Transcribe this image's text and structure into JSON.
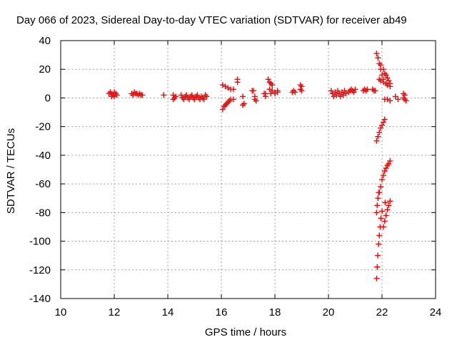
{
  "chart_data": {
    "type": "scatter",
    "title": "Day 066 of 2023, Sidereal Day-to-day VTEC variation (SDTVAR) for receiver ab49",
    "xlabel": "GPS time / hours",
    "ylabel": "SDTVAR / TECUs",
    "xlim": [
      10,
      24
    ],
    "ylim": [
      -140,
      40
    ],
    "xticks": [
      10,
      12,
      14,
      16,
      18,
      20,
      22,
      24
    ],
    "yticks": [
      40,
      20,
      0,
      -20,
      -40,
      -60,
      -80,
      -100,
      -120,
      -140
    ],
    "grid": true,
    "marker": "+",
    "colors": {
      "series": "#ff0000",
      "grid": "#a0a0a0",
      "axis": "#000000"
    },
    "series": [
      {
        "name": "SDTVAR",
        "points": [
          [
            11.8,
            3
          ],
          [
            11.85,
            4
          ],
          [
            11.9,
            3
          ],
          [
            11.95,
            2
          ],
          [
            12.0,
            4
          ],
          [
            12.05,
            3
          ],
          [
            12.1,
            2
          ],
          [
            11.9,
            1
          ],
          [
            12.0,
            1
          ],
          [
            12.65,
            3
          ],
          [
            12.7,
            2
          ],
          [
            12.75,
            4
          ],
          [
            12.8,
            3
          ],
          [
            12.85,
            3
          ],
          [
            12.9,
            2
          ],
          [
            12.95,
            3
          ],
          [
            13.0,
            2
          ],
          [
            13.05,
            2
          ],
          [
            13.85,
            2
          ],
          [
            14.2,
            2
          ],
          [
            14.25,
            0
          ],
          [
            14.2,
            -1
          ],
          [
            14.3,
            1
          ],
          [
            14.5,
            2
          ],
          [
            14.55,
            0
          ],
          [
            14.6,
            -1
          ],
          [
            14.65,
            1
          ],
          [
            14.7,
            2
          ],
          [
            14.75,
            0
          ],
          [
            14.8,
            -1
          ],
          [
            14.85,
            1
          ],
          [
            14.9,
            2
          ],
          [
            14.95,
            0
          ],
          [
            15.0,
            -1
          ],
          [
            15.05,
            1
          ],
          [
            15.1,
            2
          ],
          [
            15.15,
            0
          ],
          [
            15.2,
            -1
          ],
          [
            15.25,
            1
          ],
          [
            15.3,
            0
          ],
          [
            15.35,
            -1
          ],
          [
            15.4,
            2
          ],
          [
            15.45,
            1
          ],
          [
            16.05,
            9
          ],
          [
            16.15,
            8
          ],
          [
            16.25,
            7
          ],
          [
            16.35,
            6
          ],
          [
            16.45,
            6
          ],
          [
            16.05,
            -8
          ],
          [
            16.1,
            -6
          ],
          [
            16.15,
            -5
          ],
          [
            16.2,
            -4
          ],
          [
            16.25,
            -3
          ],
          [
            16.3,
            -2
          ],
          [
            16.35,
            -1
          ],
          [
            16.45,
            -1
          ],
          [
            16.6,
            13
          ],
          [
            16.6,
            11
          ],
          [
            16.8,
            1
          ],
          [
            16.85,
            -4
          ],
          [
            16.8,
            -5
          ],
          [
            17.15,
            5
          ],
          [
            17.2,
            5
          ],
          [
            17.25,
            1
          ],
          [
            17.25,
            -1
          ],
          [
            17.3,
            -2
          ],
          [
            17.6,
            3
          ],
          [
            17.65,
            1
          ],
          [
            17.65,
            3
          ],
          [
            17.75,
            13
          ],
          [
            17.8,
            11
          ],
          [
            17.85,
            10
          ],
          [
            17.9,
            9
          ],
          [
            17.8,
            6
          ],
          [
            17.9,
            5
          ],
          [
            18.0,
            4
          ],
          [
            18.1,
            5
          ],
          [
            17.85,
            3
          ],
          [
            18.0,
            3
          ],
          [
            18.1,
            4
          ],
          [
            18.65,
            4
          ],
          [
            18.7,
            5
          ],
          [
            18.75,
            4
          ],
          [
            18.95,
            9
          ],
          [
            19.0,
            8
          ],
          [
            18.95,
            6
          ],
          [
            19.0,
            5
          ],
          [
            20.1,
            5
          ],
          [
            20.15,
            3
          ],
          [
            20.2,
            1
          ],
          [
            20.25,
            4
          ],
          [
            20.3,
            2
          ],
          [
            20.35,
            5
          ],
          [
            20.4,
            3
          ],
          [
            20.45,
            1
          ],
          [
            20.5,
            4
          ],
          [
            20.55,
            2
          ],
          [
            20.6,
            5
          ],
          [
            20.65,
            3
          ],
          [
            20.75,
            4
          ],
          [
            20.8,
            5
          ],
          [
            20.85,
            6
          ],
          [
            20.9,
            5
          ],
          [
            20.95,
            4
          ],
          [
            21.0,
            6
          ],
          [
            21.3,
            5
          ],
          [
            21.35,
            6
          ],
          [
            21.4,
            5
          ],
          [
            21.45,
            6
          ],
          [
            21.65,
            6
          ],
          [
            21.7,
            5
          ],
          [
            21.75,
            5
          ],
          [
            21.8,
            31
          ],
          [
            21.85,
            28
          ],
          [
            21.9,
            24
          ],
          [
            21.95,
            20
          ],
          [
            22.0,
            16
          ],
          [
            22.05,
            13
          ],
          [
            21.95,
            23
          ],
          [
            22.05,
            20
          ],
          [
            22.1,
            17
          ],
          [
            22.15,
            16
          ],
          [
            22.2,
            14
          ],
          [
            22.25,
            12
          ],
          [
            22.3,
            10
          ],
          [
            21.9,
            13
          ],
          [
            21.95,
            12
          ],
          [
            22.05,
            11
          ],
          [
            22.15,
            10
          ],
          [
            22.2,
            9
          ],
          [
            22.3,
            8
          ],
          [
            22.1,
            -1
          ],
          [
            22.2,
            -1
          ],
          [
            22.3,
            -2
          ],
          [
            22.5,
            1
          ],
          [
            22.6,
            -1
          ],
          [
            22.8,
            3
          ],
          [
            22.85,
            2
          ],
          [
            22.8,
            0
          ],
          [
            22.85,
            -1
          ],
          [
            22.9,
            -2
          ],
          [
            21.8,
            -30
          ],
          [
            21.85,
            -27
          ],
          [
            21.9,
            -24
          ],
          [
            21.95,
            -21
          ],
          [
            22.0,
            -19
          ],
          [
            22.05,
            -17
          ],
          [
            22.1,
            -15
          ],
          [
            21.9,
            -66
          ],
          [
            21.95,
            -62
          ],
          [
            22.0,
            -57
          ],
          [
            22.05,
            -54
          ],
          [
            22.1,
            -51
          ],
          [
            22.15,
            -49
          ],
          [
            22.2,
            -47
          ],
          [
            22.25,
            -46
          ],
          [
            22.3,
            -44
          ],
          [
            21.8,
            -126
          ],
          [
            21.82,
            -118
          ],
          [
            21.84,
            -110
          ],
          [
            21.87,
            -102
          ],
          [
            21.9,
            -96
          ],
          [
            21.93,
            -90
          ],
          [
            21.96,
            -84
          ],
          [
            22.0,
            -79
          ],
          [
            21.8,
            -80
          ],
          [
            21.82,
            -75
          ],
          [
            21.85,
            -70
          ],
          [
            21.88,
            -66
          ],
          [
            22.05,
            -90
          ],
          [
            22.1,
            -86
          ],
          [
            22.15,
            -82
          ],
          [
            22.2,
            -78
          ],
          [
            22.25,
            -75
          ],
          [
            22.3,
            -72
          ],
          [
            22.12,
            -73
          ]
        ]
      }
    ]
  }
}
